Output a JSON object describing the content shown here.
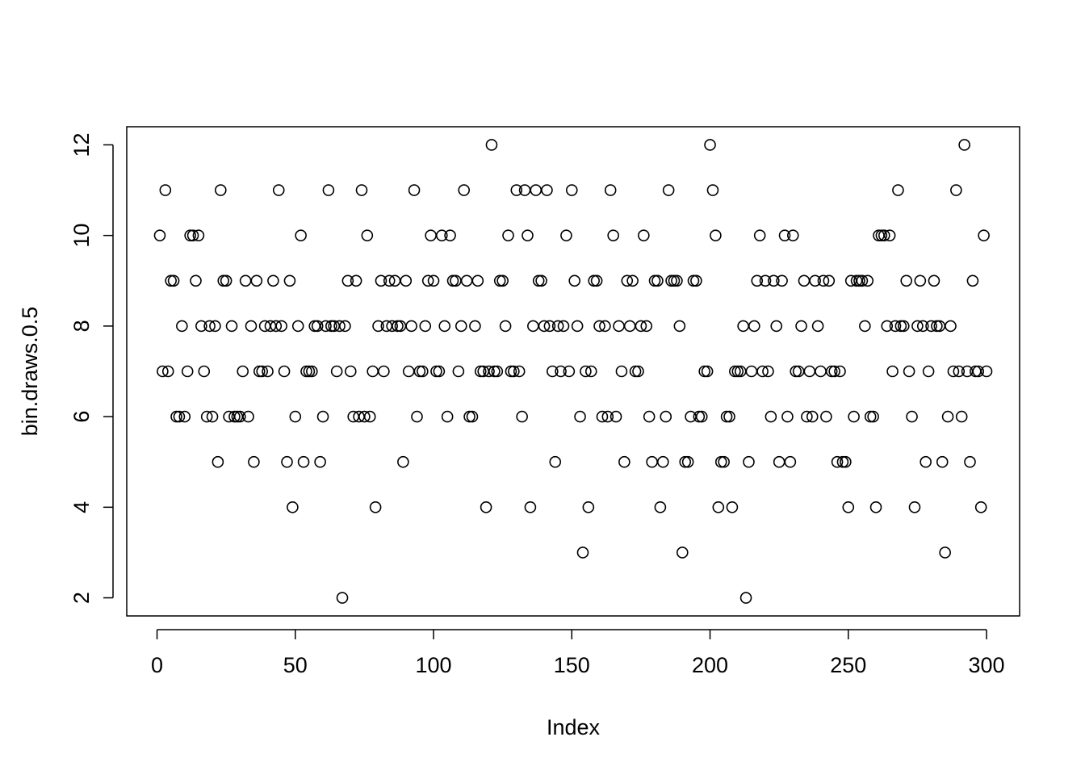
{
  "chart_data": {
    "type": "scatter",
    "xlabel": "Index",
    "ylabel": "bin.draws.0.5",
    "x": [
      1,
      2,
      3,
      4,
      5,
      6,
      7,
      8,
      9,
      10,
      11,
      12,
      13,
      14,
      15,
      16,
      17,
      18,
      19,
      20,
      21,
      22,
      23,
      24,
      25,
      26,
      27,
      28,
      29,
      30,
      31,
      32,
      33,
      34,
      35,
      36,
      37,
      38,
      39,
      40,
      41,
      42,
      43,
      44,
      45,
      46,
      47,
      48,
      49,
      50,
      51,
      52,
      53,
      54,
      55,
      56,
      57,
      58,
      59,
      60,
      61,
      62,
      63,
      64,
      65,
      66,
      67,
      68,
      69,
      70,
      71,
      72,
      73,
      74,
      75,
      76,
      77,
      78,
      79,
      80,
      81,
      82,
      83,
      84,
      85,
      86,
      87,
      88,
      89,
      90,
      91,
      92,
      93,
      94,
      95,
      96,
      97,
      98,
      99,
      100,
      101,
      102,
      103,
      104,
      105,
      106,
      107,
      108,
      109,
      110,
      111,
      112,
      113,
      114,
      115,
      116,
      117,
      118,
      119,
      120,
      121,
      122,
      123,
      124,
      125,
      126,
      127,
      128,
      129,
      130,
      131,
      132,
      133,
      134,
      135,
      136,
      137,
      138,
      139,
      140,
      141,
      142,
      143,
      144,
      145,
      146,
      147,
      148,
      149,
      150,
      151,
      152,
      153,
      154,
      155,
      156,
      157,
      158,
      159,
      160,
      161,
      162,
      163,
      164,
      165,
      166,
      167,
      168,
      169,
      170,
      171,
      172,
      173,
      174,
      175,
      176,
      177,
      178,
      179,
      180,
      181,
      182,
      183,
      184,
      185,
      186,
      187,
      188,
      189,
      190,
      191,
      192,
      193,
      194,
      195,
      196,
      197,
      198,
      199,
      200,
      201,
      202,
      203,
      204,
      205,
      206,
      207,
      208,
      209,
      210,
      211,
      212,
      213,
      214,
      215,
      216,
      217,
      218,
      219,
      220,
      221,
      222,
      223,
      224,
      225,
      226,
      227,
      228,
      229,
      230,
      231,
      232,
      233,
      234,
      235,
      236,
      237,
      238,
      239,
      240,
      241,
      242,
      243,
      244,
      245,
      246,
      247,
      248,
      249,
      250,
      251,
      252,
      253,
      254,
      255,
      256,
      257,
      258,
      259,
      260,
      261,
      262,
      263,
      264,
      265,
      266,
      267,
      268,
      269,
      270,
      271,
      272,
      273,
      274,
      275,
      276,
      277,
      278,
      279,
      280,
      281,
      282,
      283,
      284,
      285,
      286,
      287,
      288,
      289,
      290,
      291,
      292,
      293,
      294,
      295,
      296,
      297,
      298,
      299,
      300
    ],
    "values": [
      10,
      7,
      11,
      7,
      9,
      9,
      6,
      6,
      8,
      6,
      7,
      10,
      10,
      9,
      10,
      8,
      7,
      6,
      8,
      6,
      8,
      5,
      11,
      9,
      9,
      6,
      8,
      6,
      6,
      6,
      7,
      9,
      6,
      8,
      5,
      9,
      7,
      7,
      8,
      7,
      8,
      9,
      8,
      11,
      8,
      7,
      5,
      9,
      4,
      6,
      8,
      10,
      5,
      7,
      7,
      7,
      8,
      8,
      5,
      6,
      8,
      11,
      8,
      8,
      7,
      8,
      2,
      8,
      9,
      7,
      6,
      9,
      6,
      11,
      6,
      10,
      6,
      7,
      4,
      8,
      9,
      7,
      8,
      9,
      8,
      9,
      8,
      8,
      5,
      9,
      7,
      8,
      11,
      6,
      7,
      7,
      8,
      9,
      10,
      9,
      7,
      7,
      10,
      8,
      6,
      10,
      9,
      9,
      7,
      8,
      11,
      9,
      6,
      6,
      8,
      9,
      7,
      7,
      4,
      7,
      12,
      7,
      7,
      9,
      9,
      8,
      10,
      7,
      7,
      11,
      7,
      6,
      11,
      10,
      4,
      8,
      11,
      9,
      9,
      8,
      11,
      8,
      7,
      5,
      8,
      7,
      8,
      10,
      7,
      11,
      9,
      8,
      6,
      3,
      7,
      4,
      7,
      9,
      9,
      8,
      6,
      8,
      6,
      11,
      10,
      6,
      8,
      7,
      5,
      9,
      8,
      9,
      7,
      7,
      8,
      10,
      8,
      6,
      5,
      9,
      9,
      4,
      5,
      6,
      11,
      9,
      9,
      9,
      8,
      3,
      5,
      5,
      6,
      9,
      9,
      6,
      6,
      7,
      7,
      12,
      11,
      10,
      4,
      5,
      5,
      6,
      6,
      4,
      7,
      7,
      7,
      8,
      2,
      5,
      7,
      8,
      9,
      10,
      7,
      9,
      7,
      6,
      9,
      8,
      5,
      9,
      10,
      6,
      5,
      10,
      7,
      7,
      8,
      9,
      6,
      7,
      6,
      9,
      8,
      7,
      9,
      6,
      9,
      7,
      7,
      5,
      7,
      5,
      5,
      4,
      9,
      6,
      9,
      9,
      9,
      8,
      9,
      6,
      6,
      4,
      10,
      10,
      10,
      8,
      10,
      7,
      8,
      11,
      8,
      8,
      9,
      7,
      6,
      4,
      8,
      9,
      8,
      5,
      7,
      8,
      9,
      8,
      8,
      5,
      3,
      6,
      8,
      7,
      11,
      7,
      6,
      12,
      7,
      5,
      9,
      7,
      7,
      4,
      10,
      7
    ],
    "xlim": [
      -10.96,
      311.96
    ],
    "ylim": [
      1.6,
      12.4
    ],
    "xticks": [
      0,
      50,
      100,
      150,
      200,
      250,
      300
    ],
    "yticks": [
      2,
      4,
      6,
      8,
      10,
      12
    ],
    "color": "#000000"
  }
}
